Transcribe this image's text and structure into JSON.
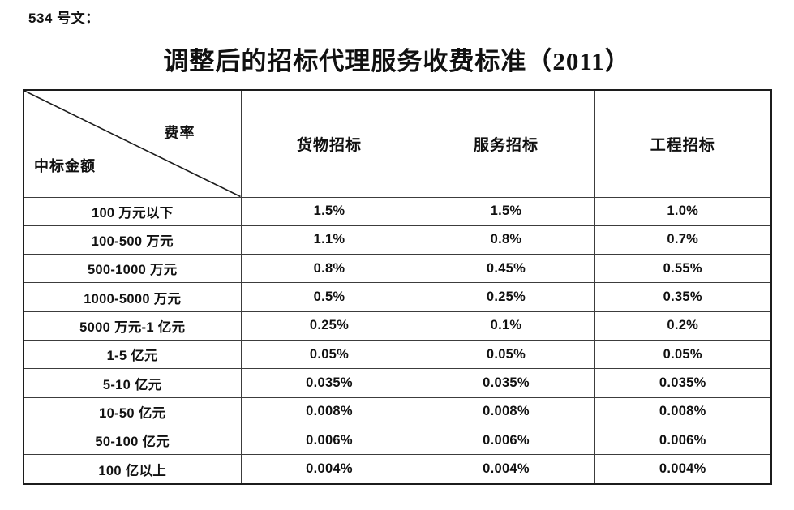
{
  "page": {
    "doc_label": "534 号文：",
    "title": "调整后的招标代理服务收费标准（2011）"
  },
  "table": {
    "corner": {
      "top_right": "费率",
      "bottom_left": "中标金额"
    },
    "columns": [
      "货物招标",
      "服务招标",
      "工程招标"
    ],
    "rows": [
      {
        "label": "100 万元以下",
        "values": [
          "1.5%",
          "1.5%",
          "1.0%"
        ]
      },
      {
        "label": "100-500 万元",
        "values": [
          "1.1%",
          "0.8%",
          "0.7%"
        ]
      },
      {
        "label": "500-1000 万元",
        "values": [
          "0.8%",
          "0.45%",
          "0.55%"
        ]
      },
      {
        "label": "1000-5000 万元",
        "values": [
          "0.5%",
          "0.25%",
          "0.35%"
        ]
      },
      {
        "label": "5000 万元-1 亿元",
        "values": [
          "0.25%",
          "0.1%",
          "0.2%"
        ]
      },
      {
        "label": "1-5 亿元",
        "values": [
          "0.05%",
          "0.05%",
          "0.05%"
        ]
      },
      {
        "label": "5-10 亿元",
        "values": [
          "0.035%",
          "0.035%",
          "0.035%"
        ]
      },
      {
        "label": "10-50 亿元",
        "values": [
          "0.008%",
          "0.008%",
          "0.008%"
        ]
      },
      {
        "label": "50-100 亿元",
        "values": [
          "0.006%",
          "0.006%",
          "0.006%"
        ]
      },
      {
        "label": "100 亿以上",
        "values": [
          "0.004%",
          "0.004%",
          "0.004%"
        ]
      }
    ]
  },
  "colors": {
    "text": "#111111",
    "outer_border": "#1c1c1c",
    "inner_border": "#3c3c3c",
    "background": "#ffffff"
  }
}
